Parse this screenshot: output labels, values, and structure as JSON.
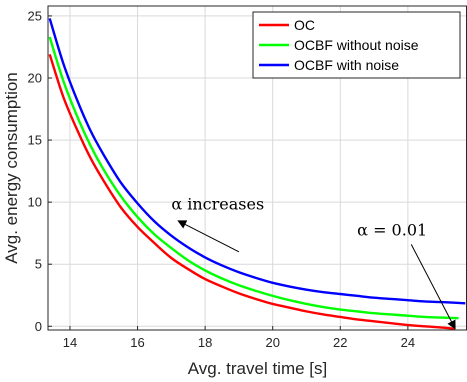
{
  "chart_data": {
    "type": "line",
    "xlabel": "Avg. travel time [s]",
    "ylabel": "Avg. energy consumption",
    "xlim": [
      13.35,
      25.75
    ],
    "ylim": [
      -0.3,
      25.8
    ],
    "xticks": [
      14,
      16,
      18,
      20,
      22,
      24
    ],
    "yticks": [
      0,
      5,
      10,
      15,
      20,
      25
    ],
    "grid": true,
    "legend_position": "top-right",
    "series": [
      {
        "name": "OC",
        "color": "#ff0000",
        "x": [
          13.4,
          13.8,
          14.2,
          14.6,
          15.0,
          15.5,
          16.0,
          16.5,
          17.0,
          17.5,
          18.0,
          18.5,
          19.0,
          19.5,
          20.0,
          20.5,
          21.0,
          21.5,
          22.0,
          22.5,
          23.0,
          23.5,
          24.0,
          24.5,
          25.0,
          25.4
        ],
        "y": [
          21.9,
          18.5,
          15.9,
          13.6,
          11.7,
          9.6,
          8.0,
          6.7,
          5.5,
          4.6,
          3.8,
          3.2,
          2.65,
          2.2,
          1.8,
          1.5,
          1.2,
          0.95,
          0.75,
          0.55,
          0.4,
          0.25,
          0.1,
          0.0,
          -0.1,
          -0.2
        ]
      },
      {
        "name": "OCBF without noise",
        "color": "#00ff00",
        "x": [
          13.4,
          13.8,
          14.2,
          14.6,
          15.0,
          15.5,
          16.0,
          16.5,
          17.0,
          17.5,
          18.0,
          18.5,
          19.0,
          19.5,
          20.0,
          20.5,
          21.0,
          21.5,
          22.0,
          22.5,
          23.0,
          23.5,
          24.0,
          24.5,
          25.0,
          25.5
        ],
        "y": [
          23.3,
          19.8,
          17.0,
          14.6,
          12.6,
          10.5,
          8.8,
          7.4,
          6.3,
          5.3,
          4.5,
          3.85,
          3.3,
          2.85,
          2.45,
          2.1,
          1.8,
          1.55,
          1.35,
          1.2,
          1.05,
          0.95,
          0.85,
          0.75,
          0.7,
          0.65
        ]
      },
      {
        "name": "OCBF with noise",
        "color": "#0000ff",
        "x": [
          13.4,
          13.8,
          14.2,
          14.6,
          15.0,
          15.5,
          16.0,
          16.5,
          17.0,
          17.5,
          18.0,
          18.5,
          19.0,
          19.5,
          20.0,
          20.5,
          21.0,
          21.5,
          22.0,
          22.5,
          23.0,
          23.5,
          24.0,
          24.5,
          25.0,
          25.7
        ],
        "y": [
          24.8,
          21.2,
          18.3,
          15.8,
          13.8,
          11.6,
          9.9,
          8.45,
          7.3,
          6.35,
          5.55,
          4.9,
          4.35,
          3.9,
          3.5,
          3.2,
          2.95,
          2.75,
          2.6,
          2.45,
          2.3,
          2.2,
          2.1,
          2.0,
          1.95,
          1.85
        ]
      }
    ],
    "annotations": [
      {
        "text": "α increases",
        "arrow_from": [
          19.0,
          6.0
        ],
        "arrow_to": [
          17.2,
          8.5
        ],
        "text_at": [
          17.0,
          9.4
        ]
      },
      {
        "text": "α = 0.01",
        "arrow_from": [
          24.1,
          6.6
        ],
        "arrow_to": [
          25.4,
          -0.2
        ],
        "text_at": [
          22.5,
          7.3
        ]
      }
    ]
  }
}
